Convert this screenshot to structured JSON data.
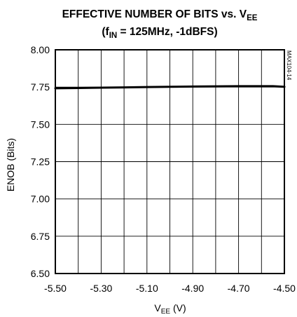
{
  "chart_data": {
    "type": "line",
    "title_line1": "EFFECTIVE NUMBER OF BITS vs. V",
    "title_line1_sub": "EE",
    "title_line2_pre": "(f",
    "title_line2_sub": "IN",
    "title_line2_post": " = 125MHz, -1dBFS)",
    "ylabel": "ENOB (Bits)",
    "xlabel_main": "V",
    "xlabel_sub": "EE",
    "xlabel_unit": " (V)",
    "side_note": "MAX104-14",
    "xlim": [
      -5.5,
      -4.5
    ],
    "ylim": [
      6.5,
      8.0
    ],
    "x_ticks": [
      -5.5,
      -5.3,
      -5.1,
      -4.9,
      -4.7,
      -4.5
    ],
    "x_tick_labels": [
      "-5.50",
      "-5.30",
      "-5.10",
      "-4.90",
      "-4.70",
      "-4.50"
    ],
    "y_ticks": [
      6.5,
      6.75,
      7.0,
      7.25,
      7.5,
      7.75,
      8.0
    ],
    "y_tick_labels": [
      "6.50",
      "6.75",
      "7.00",
      "7.25",
      "7.50",
      "7.75",
      "8.00"
    ],
    "x_grid_count": 10,
    "y_grid_count": 6,
    "grid": true,
    "series": [
      {
        "x": [
          -5.5,
          -5.4,
          -5.3,
          -5.2,
          -5.1,
          -5.0,
          -4.9,
          -4.8,
          -4.7,
          -4.6,
          -4.55,
          -4.5
        ],
        "y": [
          7.742,
          7.744,
          7.746,
          7.748,
          7.75,
          7.752,
          7.754,
          7.755,
          7.756,
          7.756,
          7.756,
          7.752
        ]
      }
    ]
  }
}
